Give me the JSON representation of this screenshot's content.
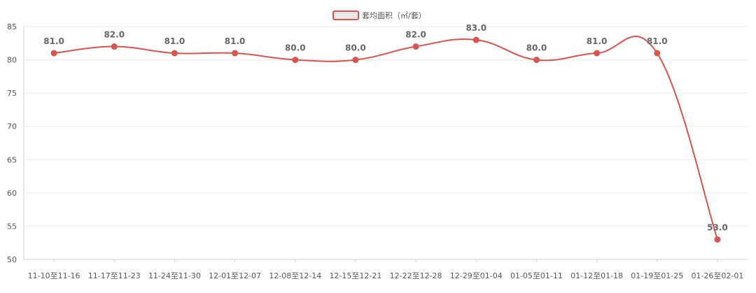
{
  "chart_data": {
    "type": "line",
    "categories": [
      "11-10至11-16",
      "11-17至11-23",
      "11-24至11-30",
      "12-01至12-07",
      "12-08至12-14",
      "12-15至12-21",
      "12-22至12-28",
      "12-29至01-04",
      "01-05至01-11",
      "01-12至01-18",
      "01-19至01-25",
      "01-26至02-01"
    ],
    "series": [
      {
        "name": "套均面积（㎡/套）",
        "values": [
          81.0,
          82.0,
          81.0,
          81.0,
          80.0,
          80.0,
          82.0,
          83.0,
          80.0,
          81.0,
          81.0,
          53.0
        ],
        "data_labels": [
          "81.0",
          "82.0",
          "81.0",
          "81.0",
          "80.0",
          "80.0",
          "82.0",
          "83.0",
          "80.0",
          "81.0",
          "81.0",
          "53.0"
        ],
        "color": "#d9534f"
      }
    ],
    "ylim": [
      50,
      85
    ],
    "yticks": [
      50,
      55,
      60,
      65,
      70,
      75,
      80,
      85
    ],
    "grid": true,
    "legend_position": "top-center",
    "legend_fill": "#e8e8e8"
  }
}
